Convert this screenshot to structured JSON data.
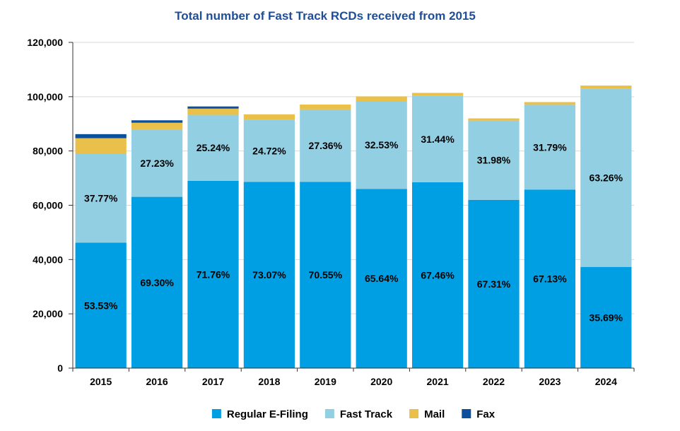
{
  "chart_data": {
    "type": "bar",
    "stacked": true,
    "title": "Total number of Fast Track RCDs received from 2015",
    "categories": [
      "2015",
      "2016",
      "2017",
      "2018",
      "2019",
      "2020",
      "2021",
      "2022",
      "2023",
      "2024"
    ],
    "ylim": [
      0,
      120000
    ],
    "yticks": [
      0,
      20000,
      40000,
      60000,
      80000,
      100000,
      120000
    ],
    "ytick_labels": [
      "0",
      "20,000",
      "40,000",
      "60,000",
      "80,000",
      "100,000",
      "120,000"
    ],
    "grid": true,
    "legend_position": "bottom",
    "series": [
      {
        "name": "Regular E-Filing",
        "color": "#009fe3",
        "values": [
          46200,
          63100,
          69000,
          68600,
          68600,
          66000,
          68500,
          62000,
          65800,
          37300
        ],
        "labels": [
          "53.53%",
          "69.30%",
          "71.76%",
          "73.07%",
          "70.55%",
          "65.64%",
          "67.46%",
          "67.31%",
          "67.13%",
          "35.69%"
        ]
      },
      {
        "name": "Fast Track",
        "color": "#92cfe3",
        "values": [
          32800,
          24900,
          24300,
          23000,
          26700,
          32400,
          31800,
          29200,
          31200,
          65700
        ],
        "labels": [
          "37.77%",
          "27.23%",
          "25.24%",
          "24.72%",
          "27.36%",
          "32.53%",
          "31.44%",
          "31.98%",
          "31.79%",
          "63.26%"
        ]
      },
      {
        "name": "Mail",
        "color": "#e8c04a",
        "values": [
          5700,
          2400,
          2300,
          1900,
          1800,
          1700,
          1100,
          800,
          1000,
          1100
        ],
        "labels": []
      },
      {
        "name": "Fax",
        "color": "#0c4f9c",
        "values": [
          1500,
          900,
          800,
          0,
          0,
          0,
          0,
          0,
          0,
          0
        ],
        "labels": []
      }
    ]
  }
}
